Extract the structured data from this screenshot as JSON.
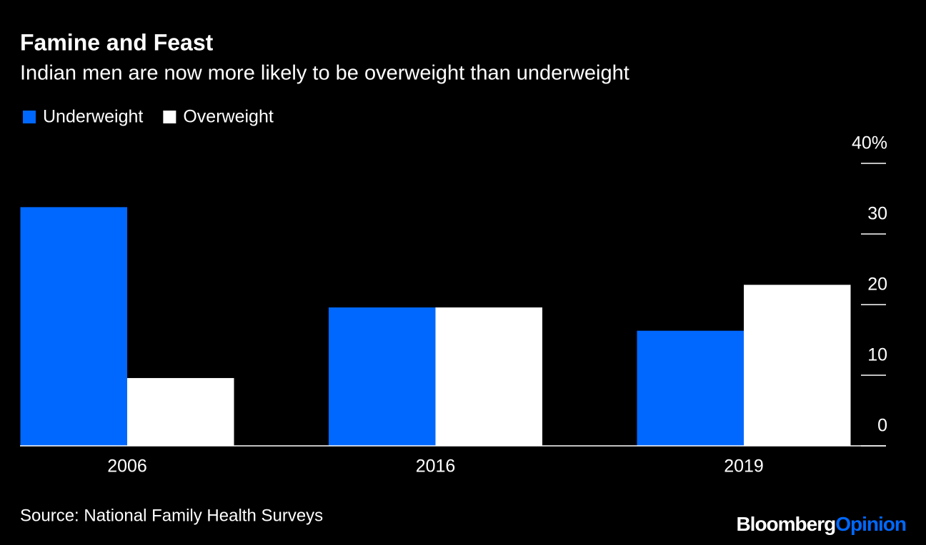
{
  "chart_data": {
    "type": "bar",
    "title": "Famine and Feast",
    "subtitle": "Indian men are now more likely to be overweight than underweight",
    "categories": [
      "2006",
      "2016",
      "2019"
    ],
    "series": [
      {
        "name": "Underweight",
        "color": "#0068ff",
        "values": [
          33.8,
          19.6,
          16.3
        ]
      },
      {
        "name": "Overweight",
        "color": "#ffffff",
        "values": [
          9.6,
          19.6,
          22.8
        ]
      }
    ],
    "ylim": [
      0,
      40
    ],
    "yticks": [
      0,
      10,
      20,
      30,
      {
        "value": 40,
        "label": "40%"
      }
    ],
    "source": "Source: National Family Health Surveys",
    "logo": {
      "brand": "Bloomberg",
      "section": "Opinion"
    }
  }
}
